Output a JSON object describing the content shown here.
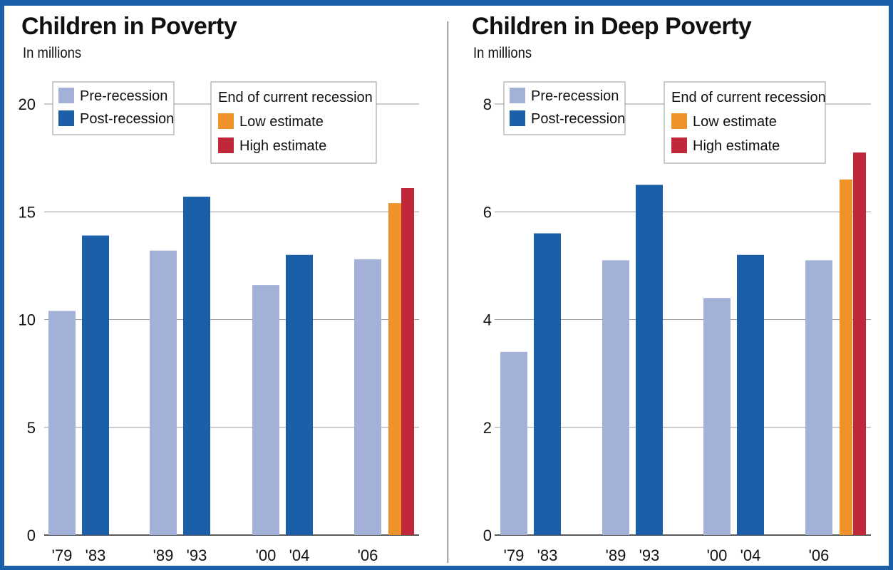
{
  "banner_color": "#1a5fa8",
  "colors": {
    "pre": "#a3b1d9",
    "post": "#1a5fa8",
    "low": "#f0922a",
    "high": "#c0283a"
  },
  "legend": {
    "pre_label": "Pre-recession",
    "post_label": "Post-recession",
    "group_title": "End of current recession",
    "low_label": "Low estimate",
    "high_label": "High estimate"
  },
  "chart_data": [
    {
      "type": "bar",
      "title": "Children in Poverty",
      "subtitle": "In millions",
      "categories": [
        "'79",
        "'83",
        "'89",
        "'93",
        "'00",
        "'04",
        "'06",
        "",
        ""
      ],
      "series": [
        {
          "name": "Pre-recession",
          "color_key": "pre",
          "points": [
            {
              "index": 0,
              "value": 10.4
            },
            {
              "index": 2,
              "value": 13.2
            },
            {
              "index": 4,
              "value": 11.6
            },
            {
              "index": 6,
              "value": 12.8
            }
          ]
        },
        {
          "name": "Post-recession",
          "color_key": "post",
          "points": [
            {
              "index": 1,
              "value": 13.9
            },
            {
              "index": 3,
              "value": 15.7
            },
            {
              "index": 5,
              "value": 13.0
            }
          ]
        },
        {
          "name": "Low estimate",
          "color_key": "low",
          "points": [
            {
              "index": 7,
              "value": 15.4
            }
          ]
        },
        {
          "name": "High estimate",
          "color_key": "high",
          "points": [
            {
              "index": 8,
              "value": 16.1
            }
          ]
        }
      ],
      "ylim": [
        0,
        20
      ],
      "yticks": [
        0,
        5,
        10,
        15,
        20
      ],
      "grid": true,
      "legend_position": "top"
    },
    {
      "type": "bar",
      "title": "Children in Deep Poverty",
      "subtitle": "In millions",
      "categories": [
        "'79",
        "'83",
        "'89",
        "'93",
        "'00",
        "'04",
        "'06",
        "",
        ""
      ],
      "series": [
        {
          "name": "Pre-recession",
          "color_key": "pre",
          "points": [
            {
              "index": 0,
              "value": 3.4
            },
            {
              "index": 2,
              "value": 5.1
            },
            {
              "index": 4,
              "value": 4.4
            },
            {
              "index": 6,
              "value": 5.1
            }
          ]
        },
        {
          "name": "Post-recession",
          "color_key": "post",
          "points": [
            {
              "index": 1,
              "value": 5.6
            },
            {
              "index": 3,
              "value": 6.5
            },
            {
              "index": 5,
              "value": 5.2
            }
          ]
        },
        {
          "name": "Low estimate",
          "color_key": "low",
          "points": [
            {
              "index": 7,
              "value": 6.6
            }
          ]
        },
        {
          "name": "High estimate",
          "color_key": "high",
          "points": [
            {
              "index": 8,
              "value": 7.1
            }
          ]
        }
      ],
      "ylim": [
        0,
        8
      ],
      "yticks": [
        0,
        2,
        4,
        6,
        8
      ],
      "grid": true,
      "legend_position": "top"
    }
  ]
}
